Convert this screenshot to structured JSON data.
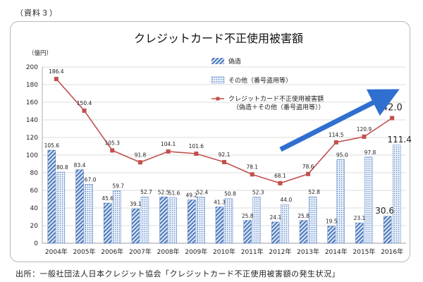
{
  "doc_label": "（資料３）",
  "source": "出所：一般社団法人日本クレジット協会「クレジットカード不正使用被害額の発生状況」",
  "colors": {
    "counterfeit": "#3f6fb6",
    "other": "#5b86c8",
    "total": "#c0504d",
    "arrow": "#2f6fcf"
  },
  "chart_data": {
    "type": "bar",
    "title": "クレジットカード不正使用被害額",
    "unit_label": "（億円）",
    "categories": [
      "2004年",
      "2005年",
      "2006年",
      "2007年",
      "2008年",
      "2009年",
      "2010年",
      "2011年",
      "2012年",
      "2013年",
      "2014年",
      "2015年",
      "2016年"
    ],
    "ylim": [
      0,
      200
    ],
    "yticks": [
      0,
      20,
      40,
      60,
      80,
      100,
      120,
      140,
      160,
      180,
      200
    ],
    "grid": true,
    "legend_position": "top-right",
    "series": [
      {
        "name": "偽造",
        "type": "bar",
        "pattern": "diagonal",
        "values": [
          105.6,
          83.4,
          45.6,
          39.1,
          52.5,
          49.2,
          41.3,
          25.8,
          24.1,
          25.8,
          19.5,
          23.1,
          30.6
        ]
      },
      {
        "name": "その他（番号盗用等）",
        "type": "bar",
        "pattern": "dotted",
        "values": [
          80.8,
          67.0,
          59.7,
          52.7,
          51.6,
          52.4,
          50.8,
          52.3,
          44.0,
          52.8,
          95.0,
          97.8,
          111.4
        ]
      },
      {
        "name": "クレジットカード不正使用被害額",
        "name_line2": "（偽造＋その他（番号盗用等））",
        "type": "line",
        "values": [
          186.4,
          150.4,
          105.3,
          91.8,
          104.1,
          101.6,
          92.1,
          78.1,
          68.1,
          78.6,
          114.5,
          120.9,
          142.0
        ]
      }
    ],
    "value_labels": {
      "counterfeit": [
        "105.6",
        "83.4",
        "45.6",
        "39.1",
        "52.5",
        "49.2",
        "41.3",
        "25.8",
        "24.1",
        "25.8",
        "19.5",
        "23.1",
        "30.6"
      ],
      "other": [
        "80.8",
        "67.0",
        "59.7",
        "52.7",
        "51.6",
        "52.4",
        "50.8",
        "52.3",
        "44.0",
        "52.8",
        "95.0",
        "97.8",
        "111.4"
      ],
      "total": [
        "186.4",
        "150.4",
        "105.3",
        "91.8",
        "104.1",
        "101.6",
        "92.1",
        "78.1",
        "68.1",
        "78.6",
        "114.5",
        "120.9",
        "142.0"
      ]
    }
  }
}
